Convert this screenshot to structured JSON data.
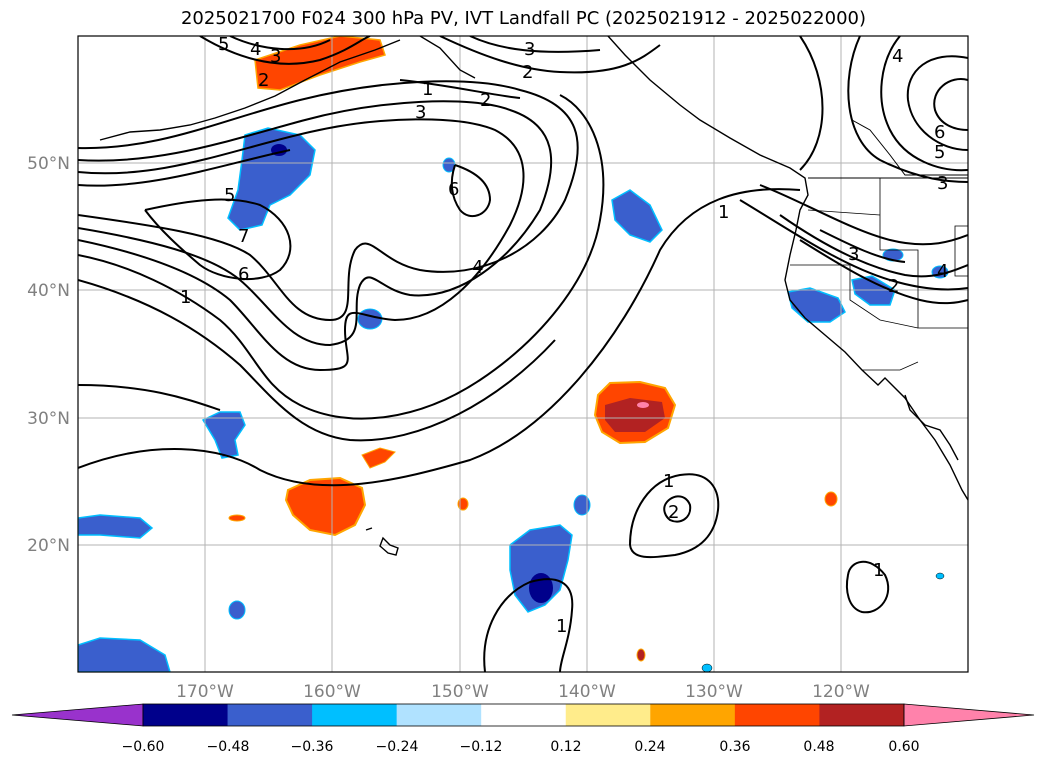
{
  "title": "2025021700 F024 300 hPa PV, IVT Landfall PC (2025021912 - 2025022000)",
  "map": {
    "lon_range": [
      -180,
      -110
    ],
    "lat_range": [
      10,
      60
    ],
    "lat_ticks": [
      {
        "value": 50,
        "label": "50°N"
      },
      {
        "value": 40,
        "label": "40°N"
      },
      {
        "value": 30,
        "label": "30°N"
      },
      {
        "value": 20,
        "label": "20°N"
      }
    ],
    "lon_ticks": [
      {
        "value": -170,
        "label": "170°W"
      },
      {
        "value": -160,
        "label": "160°W"
      },
      {
        "value": -150,
        "label": "150°W"
      },
      {
        "value": -140,
        "label": "140°W"
      },
      {
        "value": -130,
        "label": "130°W"
      },
      {
        "value": -120,
        "label": "120°W"
      }
    ],
    "gridlines": true,
    "contour_labels": [
      "5",
      "4",
      "3",
      "2",
      "3",
      "2",
      "1",
      "2",
      "3",
      "5",
      "7",
      "6",
      "1",
      "6",
      "4",
      "1",
      "2",
      "1",
      "1",
      "3",
      "4",
      "2",
      "6",
      "5",
      "3",
      "4",
      "1"
    ]
  },
  "colorbar": {
    "ticks": [
      "−0.60",
      "−0.48",
      "−0.36",
      "−0.24",
      "−0.12",
      "0.12",
      "0.24",
      "0.36",
      "0.48",
      "0.60"
    ],
    "colors": [
      "#9932cc",
      "#00008b",
      "#3a5fcd",
      "#00bfff",
      "#b0e2ff",
      "#ffffff",
      "#ffec8b",
      "#ffa500",
      "#ff4500",
      "#b22222",
      "#ff82ab"
    ]
  },
  "colors": {
    "land_coast": "#000000",
    "grid": "#b3b3b3",
    "contour": "#000000"
  }
}
